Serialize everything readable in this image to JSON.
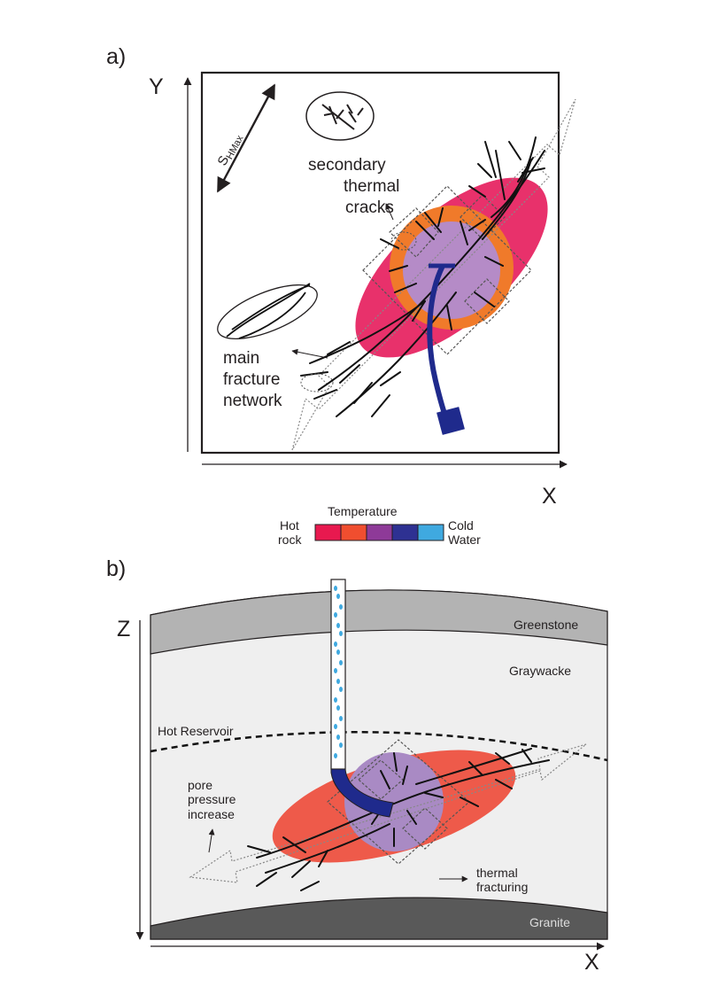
{
  "panel_a": {
    "label": "a)",
    "axis_y": "Y",
    "axis_x": "X",
    "stress_label": "SHMax",
    "stress_main": "S",
    "stress_sub": "HMax",
    "secondary_cracks": [
      "secondary",
      "thermal",
      "cracks"
    ],
    "main_fracture": [
      "main",
      "fracture",
      "network"
    ]
  },
  "legend": {
    "title": "Temperature",
    "left": [
      "Hot",
      "rock"
    ],
    "right": [
      "Cold",
      "Water"
    ],
    "colors": [
      "#e8194f",
      "#f04e2f",
      "#8e3a98",
      "#2e3192",
      "#3fa9e0"
    ]
  },
  "panel_b": {
    "label": "b)",
    "axis_z": "Z",
    "axis_x": "X",
    "layers": {
      "top": "Greenstone",
      "middle": "Graywacke",
      "bottom": "Granite"
    },
    "reservoir": "Hot Reservoir",
    "pore_pressure": [
      "pore",
      "pressure",
      "increase"
    ],
    "thermal_fracturing": [
      "thermal",
      "fracturing"
    ]
  },
  "colors": {
    "hot_zone": "#e8316b",
    "orange_zone": "#f07a2a",
    "purple_zone": "#b58bc7",
    "well_blue": "#1f2a8c",
    "red_zone_b": "#ee5a4a",
    "greenstone": "#b3b3b3",
    "graywacke": "#efefef",
    "granite": "#595959",
    "water_dots": "#3fa9e0"
  }
}
